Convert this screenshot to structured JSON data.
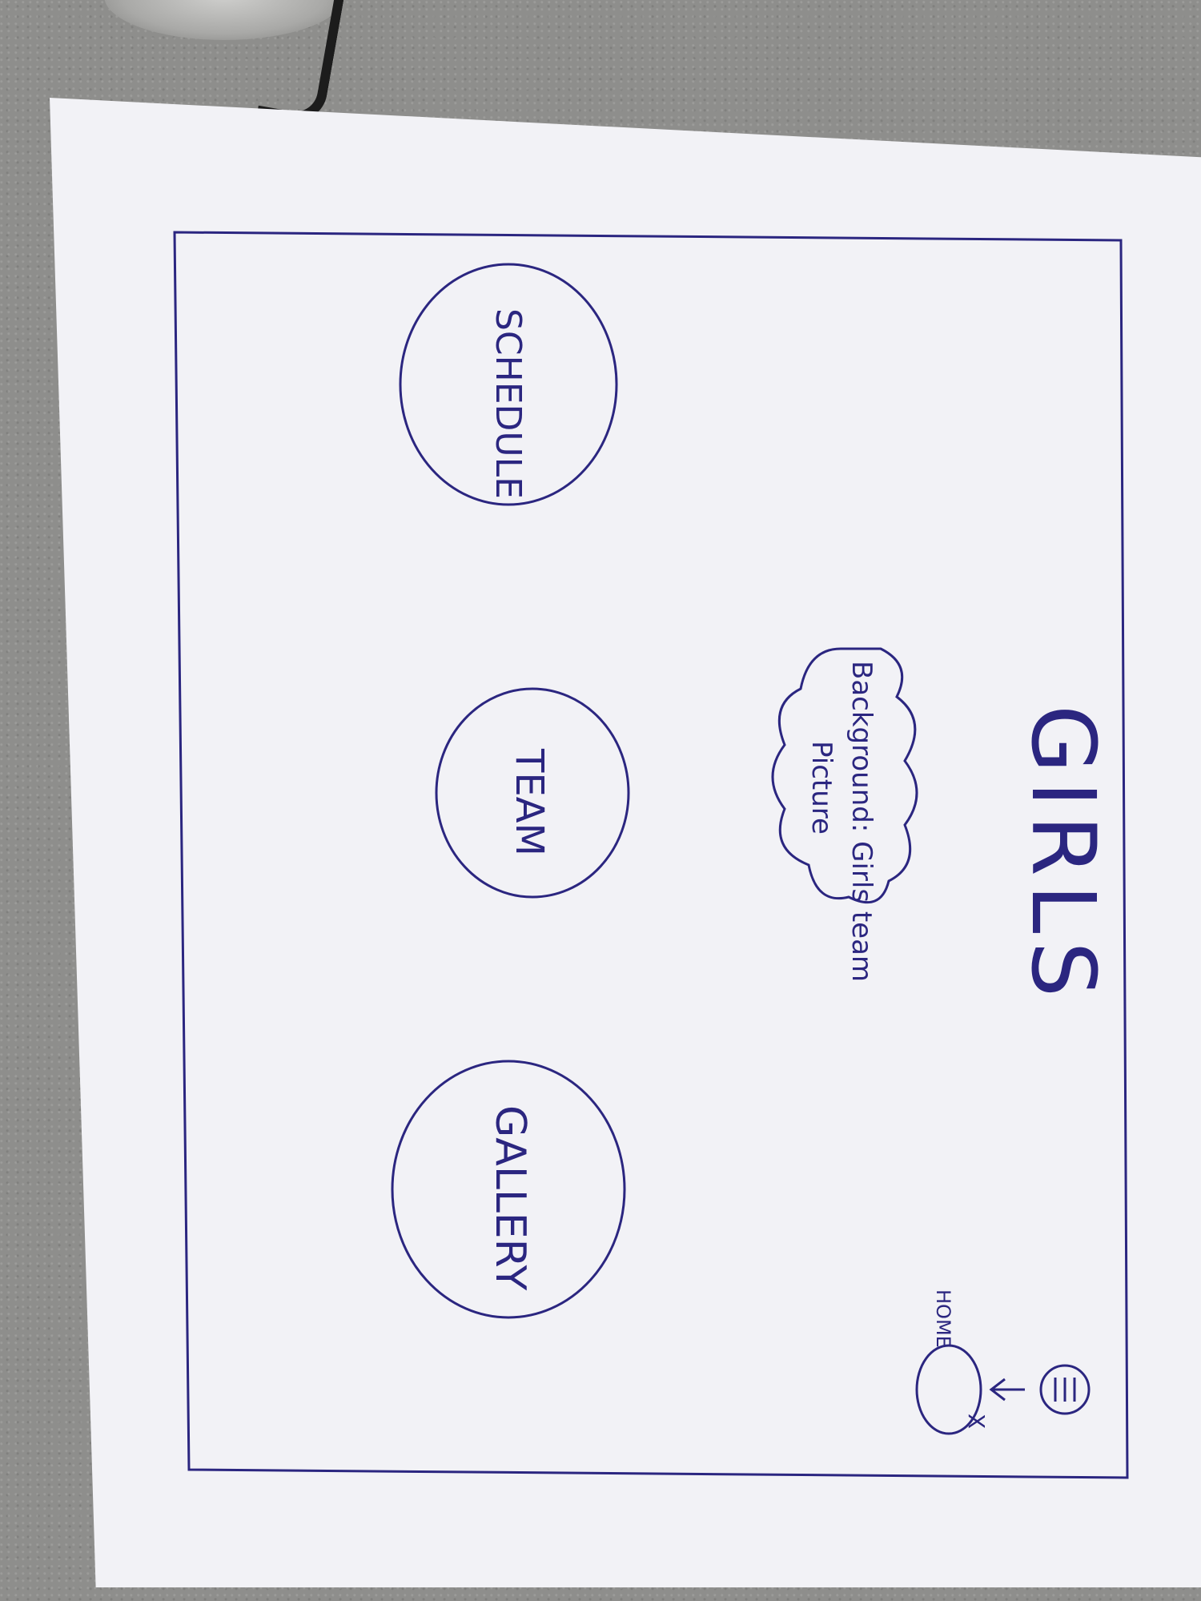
{
  "sketch": {
    "title": "GIRLS",
    "background_note_line1": "Background: Girls team",
    "background_note_line2": "Picture",
    "buttons": {
      "schedule": "SCHEDULE",
      "team": "TEAM",
      "gallery": "GALLERY"
    },
    "home_label": "HOME",
    "close_mark": "X",
    "menu_icon": "hamburger-menu-icon"
  },
  "colors": {
    "ink": "#2b2680",
    "paper": "#f2f2f6",
    "table": "#8e8e8c"
  }
}
